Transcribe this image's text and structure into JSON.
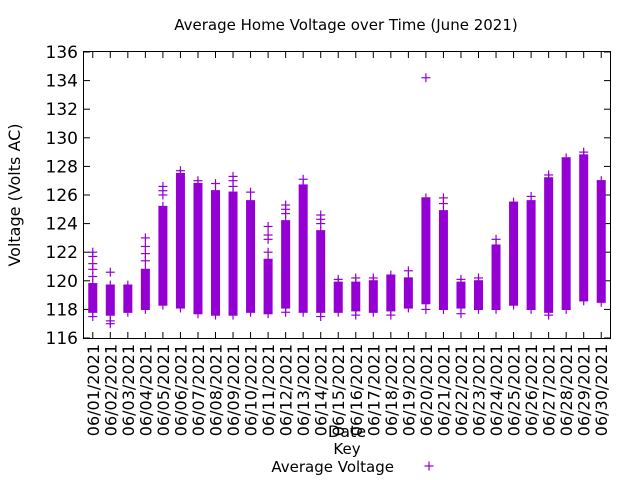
{
  "chart_data": {
    "type": "scatter",
    "title": "Average Home Voltage over Time (June 2021)",
    "xlabel": "Date",
    "ylabel": "Voltage (Volts AC)",
    "ylim": [
      116,
      136
    ],
    "yticks": [
      116,
      118,
      120,
      122,
      124,
      126,
      128,
      130,
      132,
      134,
      136
    ],
    "grid": false,
    "legend": {
      "position": "bottom",
      "title": "Key",
      "entry": "Average Voltage",
      "marker": "+"
    },
    "series_color": "#9400d3",
    "categories": [
      "06/01/2021",
      "06/02/2021",
      "06/03/2021",
      "06/04/2021",
      "06/05/2021",
      "06/06/2021",
      "06/07/2021",
      "06/08/2021",
      "06/09/2021",
      "06/10/2021",
      "06/11/2021",
      "06/12/2021",
      "06/13/2021",
      "06/14/2021",
      "06/15/2021",
      "06/16/2021",
      "06/17/2021",
      "06/18/2021",
      "06/19/2021",
      "06/20/2021",
      "06/21/2021",
      "06/22/2021",
      "06/23/2021",
      "06/24/2021",
      "06/25/2021",
      "06/26/2021",
      "06/27/2021",
      "06/28/2021",
      "06/29/2021",
      "06/30/2021"
    ],
    "series": [
      {
        "values": [
          {
            "min": 117.8,
            "max": 119.8,
            "outliers": [
              120.3,
              120.8,
              121.2,
              121.7,
              122.0,
              117.5
            ]
          },
          {
            "min": 117.6,
            "max": 119.7,
            "outliers": [
              117.2,
              117.0,
              120.6
            ]
          },
          {
            "min": 117.8,
            "max": 119.7,
            "outliers": []
          },
          {
            "min": 118.0,
            "max": 120.8,
            "outliers": [
              121.4,
              121.9,
              122.4,
              123.0
            ]
          },
          {
            "min": 118.3,
            "max": 125.2,
            "outliers": [
              126.0,
              126.3,
              126.6
            ]
          },
          {
            "min": 118.1,
            "max": 127.5,
            "outliers": [
              127.7
            ]
          },
          {
            "min": 117.7,
            "max": 126.8,
            "outliers": [
              127.0
            ]
          },
          {
            "min": 117.6,
            "max": 126.3,
            "outliers": [
              126.8
            ]
          },
          {
            "min": 117.6,
            "max": 126.2,
            "outliers": [
              126.6,
              127.0,
              127.3
            ]
          },
          {
            "min": 117.8,
            "max": 125.6,
            "outliers": [
              126.2
            ]
          },
          {
            "min": 117.7,
            "max": 121.5,
            "outliers": [
              122.0,
              122.9,
              123.2,
              123.8
            ]
          },
          {
            "min": 118.1,
            "max": 124.2,
            "outliers": [
              124.7,
              125.0,
              125.3,
              117.8
            ]
          },
          {
            "min": 117.8,
            "max": 126.7,
            "outliers": [
              127.1
            ]
          },
          {
            "min": 117.8,
            "max": 123.5,
            "outliers": [
              124.0,
              124.3,
              124.6,
              117.5
            ]
          },
          {
            "min": 117.8,
            "max": 119.9,
            "outliers": [
              120.1
            ]
          },
          {
            "min": 117.9,
            "max": 119.9,
            "outliers": [
              117.6,
              120.2
            ]
          },
          {
            "min": 117.8,
            "max": 120.0,
            "outliers": [
              120.2
            ]
          },
          {
            "min": 117.9,
            "max": 120.4,
            "outliers": [
              117.6
            ]
          },
          {
            "min": 118.1,
            "max": 120.2,
            "outliers": [
              120.7
            ]
          },
          {
            "min": 118.4,
            "max": 125.8,
            "outliers": [
              134.2,
              118.0
            ]
          },
          {
            "min": 118.0,
            "max": 124.9,
            "outliers": [
              125.4,
              125.8
            ]
          },
          {
            "min": 118.1,
            "max": 119.9,
            "outliers": [
              117.7,
              120.1
            ]
          },
          {
            "min": 118.0,
            "max": 120.0,
            "outliers": [
              120.2
            ]
          },
          {
            "min": 118.0,
            "max": 122.5,
            "outliers": [
              122.9
            ]
          },
          {
            "min": 118.3,
            "max": 125.5,
            "outliers": []
          },
          {
            "min": 118.0,
            "max": 125.6,
            "outliers": [
              125.9
            ]
          },
          {
            "min": 117.8,
            "max": 127.2,
            "outliers": [
              127.4,
              117.6
            ]
          },
          {
            "min": 118.0,
            "max": 128.6,
            "outliers": []
          },
          {
            "min": 118.6,
            "max": 128.8,
            "outliers": [
              129.0
            ]
          },
          {
            "min": 118.5,
            "max": 127.0,
            "outliers": []
          }
        ]
      }
    ]
  }
}
